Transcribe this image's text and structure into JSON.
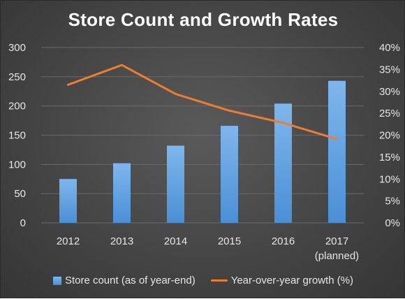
{
  "chart_data": {
    "type": "bar+line",
    "title": "Store Count and Growth Rates",
    "categories": [
      "2012",
      "2013",
      "2014",
      "2015",
      "2016",
      "2017"
    ],
    "category_sublabels": [
      "",
      "",
      "",
      "",
      "",
      "(planned)"
    ],
    "series": [
      {
        "name": "Store count (as of year-end)",
        "type": "bar",
        "axis": "left",
        "values": [
          75,
          102,
          132,
          166,
          204,
          243
        ],
        "color": "#5b9bd5"
      },
      {
        "name": "Year-over-year growth (%)",
        "type": "line",
        "axis": "right",
        "values": [
          31.5,
          36.0,
          29.4,
          25.6,
          22.8,
          19.1
        ],
        "color": "#ed7d31"
      }
    ],
    "y_left": {
      "min": 0,
      "max": 300,
      "ticks": [
        0,
        50,
        100,
        150,
        200,
        250,
        300
      ]
    },
    "y_right": {
      "min": 0,
      "max": 40,
      "ticks": [
        "0%",
        "5%",
        "10%",
        "15%",
        "20%",
        "25%",
        "30%",
        "35%",
        "40%"
      ]
    },
    "grid": true,
    "legend_position": "bottom"
  },
  "colors": {
    "background": "#454545",
    "text": "#e6e6e6",
    "gridline": "#6a6a6a"
  }
}
